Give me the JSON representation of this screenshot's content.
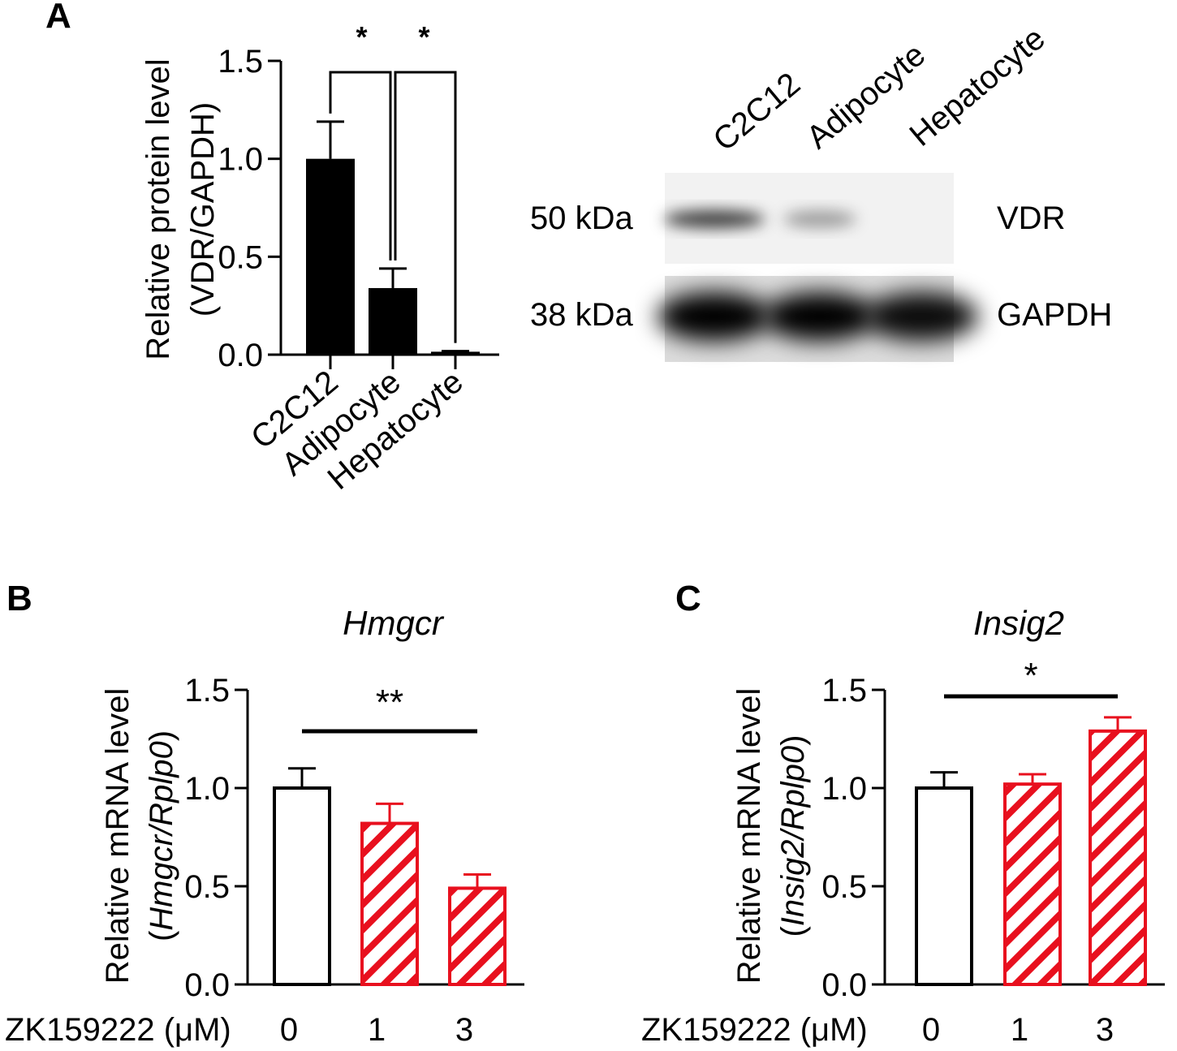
{
  "panels": {
    "a": {
      "letter": "A",
      "ylabel_line1": "Relative protein level",
      "ylabel_line2": "(VDR/GAPDH)",
      "significance": [
        "*",
        "*"
      ],
      "blot": {
        "lane_labels": [
          "C2C12",
          "Adipocyte",
          "Hepatocyte"
        ],
        "rows": [
          {
            "size": "50 kDa",
            "protein": "VDR",
            "intensity": [
              0.75,
              0.35,
              0.0
            ]
          },
          {
            "size": "38 kDa",
            "protein": "GAPDH",
            "intensity": [
              1.0,
              1.0,
              0.95
            ]
          }
        ]
      }
    },
    "b": {
      "letter": "B",
      "gene": "Hmgcr",
      "ylabel_line1": "Relative mRNA level",
      "ylabel_line2_prefix": "(",
      "ylabel_line2_gene": "Hmgcr/Rplp0",
      "ylabel_line2_suffix": ")",
      "treatment_label": "ZK159222 (μM)",
      "significance": "**"
    },
    "c": {
      "letter": "C",
      "gene": "Insig2",
      "ylabel_line1": "Relative mRNA level",
      "ylabel_line2_prefix": "(",
      "ylabel_line2_gene": "Insig2/Rplp0",
      "ylabel_line2_suffix": ")",
      "treatment_label": "ZK159222 (μM)",
      "significance": "*"
    }
  },
  "colors": {
    "black": "#000000",
    "red": "#e8101e",
    "white": "#ffffff"
  },
  "chart_data": [
    {
      "id": "A",
      "type": "bar",
      "categories": [
        "C2C12",
        "Adipocyte",
        "Hepatocyte"
      ],
      "values": [
        1.0,
        0.34,
        0.015
      ],
      "errors": [
        0.19,
        0.1,
        0.003
      ],
      "ylim": [
        0,
        1.5
      ],
      "yticks": [
        "0.0",
        "0.5",
        "1.0",
        "1.5"
      ],
      "ylabel": "Relative protein level (VDR/GAPDH)",
      "comparisons": [
        {
          "from": 0,
          "to": 1,
          "label": "*"
        },
        {
          "from": 1,
          "to": 2,
          "label": "*"
        }
      ]
    },
    {
      "id": "B",
      "type": "bar",
      "title": "Hmgcr",
      "categories": [
        "0",
        "1",
        "3"
      ],
      "values": [
        1.0,
        0.82,
        0.49
      ],
      "errors": [
        0.1,
        0.1,
        0.07
      ],
      "ylim": [
        0,
        1.5
      ],
      "yticks": [
        "0.0",
        "0.5",
        "1.0",
        "1.5"
      ],
      "ylabel": "Relative mRNA level (Hmgcr/Rplp0)",
      "xlabel": "ZK159222 (μM)",
      "comparisons": [
        {
          "from": 0,
          "to": 2,
          "label": "**"
        }
      ]
    },
    {
      "id": "C",
      "type": "bar",
      "title": "Insig2",
      "categories": [
        "0",
        "1",
        "3"
      ],
      "values": [
        1.0,
        1.02,
        1.29
      ],
      "errors": [
        0.08,
        0.05,
        0.07
      ],
      "ylim": [
        0,
        1.5
      ],
      "yticks": [
        "0.0",
        "0.5",
        "1.0",
        "1.5"
      ],
      "ylabel": "Relative mRNA level (Insig2/Rplp0)",
      "xlabel": "ZK159222 (μM)",
      "comparisons": [
        {
          "from": 0,
          "to": 2,
          "label": "*"
        }
      ]
    }
  ]
}
